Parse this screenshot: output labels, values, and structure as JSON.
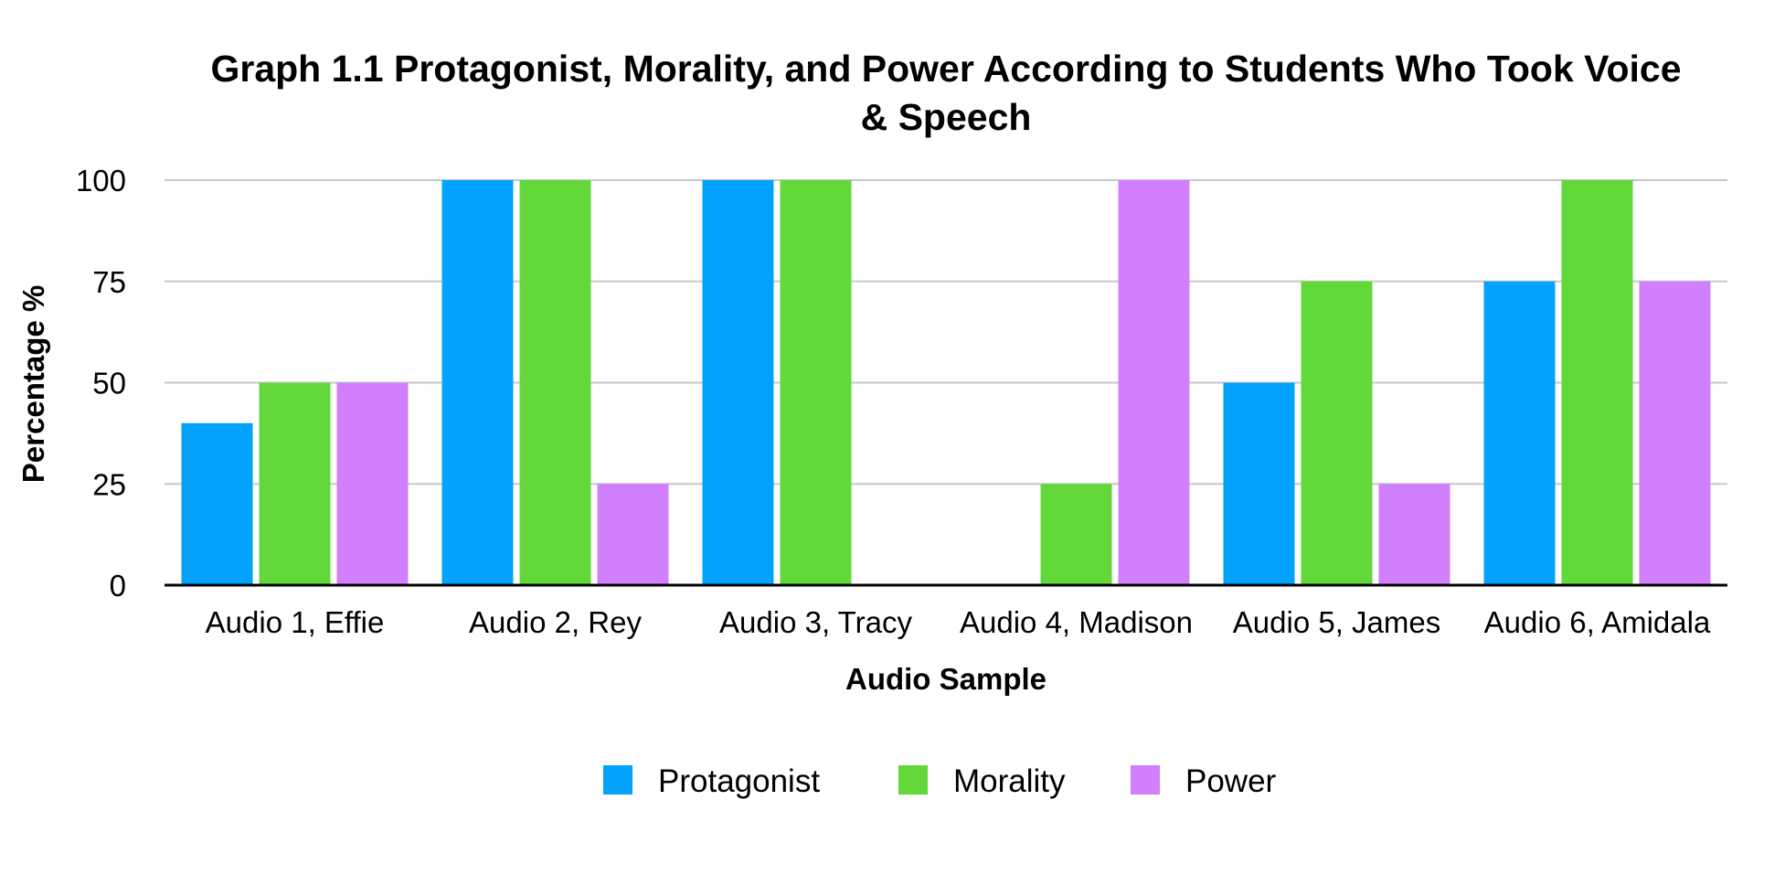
{
  "chart_data": {
    "type": "bar",
    "title_lines": [
      "Graph 1.1 Protagonist, Morality, and Power According to Students Who Took Voice",
      "& Speech"
    ],
    "xlabel": "Audio Sample",
    "ylabel": "Percentage %",
    "ylim": [
      0,
      100
    ],
    "yticks": [
      0,
      25,
      50,
      75,
      100
    ],
    "grid": true,
    "legend_position": "bottom-center",
    "categories": [
      "Audio 1, Effie",
      "Audio 2, Rey",
      "Audio 3, Tracy",
      "Audio 4, Madison",
      "Audio 5, James",
      "Audio 6, Amidala"
    ],
    "series": [
      {
        "name": "Protagonist",
        "color": "#03a2fd",
        "values": [
          40,
          100,
          100,
          0,
          50,
          75
        ]
      },
      {
        "name": "Morality",
        "color": "#62d83a",
        "values": [
          50,
          100,
          100,
          25,
          75,
          100
        ]
      },
      {
        "name": "Power",
        "color": "#d17ffd",
        "values": [
          50,
          25,
          0,
          100,
          25,
          75
        ]
      }
    ]
  }
}
